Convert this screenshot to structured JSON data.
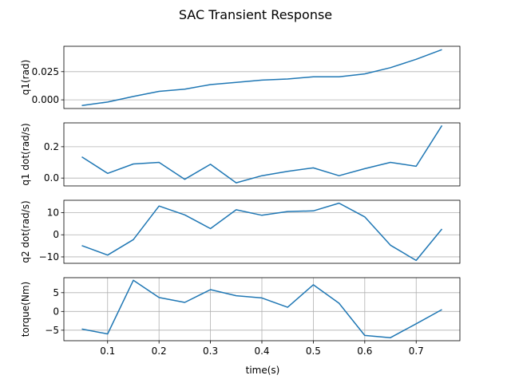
{
  "title": "SAC Transient Response",
  "xlabel": "time(s)",
  "x_ticks": [
    0.1,
    0.2,
    0.3,
    0.4,
    0.5,
    0.6,
    0.7
  ],
  "x_tick_labels": [
    "0.1",
    "0.2",
    "0.3",
    "0.4",
    "0.5",
    "0.6",
    "0.7"
  ],
  "line_color": "#1f77b4",
  "chart_data": [
    {
      "type": "line",
      "ylabel": "q1(rad)",
      "xlim": [
        0.015,
        0.785
      ],
      "ylim": [
        -0.0077,
        0.0475
      ],
      "grid": "y",
      "y_ticks": [
        0.0,
        0.025
      ],
      "y_tick_labels": [
        "0.000",
        "0.025"
      ],
      "x": [
        0.05,
        0.1,
        0.15,
        0.2,
        0.25,
        0.3,
        0.35,
        0.4,
        0.45,
        0.5,
        0.55,
        0.6,
        0.65,
        0.7,
        0.75
      ],
      "y": [
        -0.005,
        -0.002,
        0.003,
        0.0075,
        0.0095,
        0.0135,
        0.0155,
        0.0175,
        0.0185,
        0.0205,
        0.0205,
        0.023,
        0.0285,
        0.036,
        0.0445
      ]
    },
    {
      "type": "line",
      "ylabel": "q1 dot(rad/s)",
      "xlim": [
        0.015,
        0.785
      ],
      "ylim": [
        -0.05,
        0.352
      ],
      "grid": "y",
      "y_ticks": [
        0.0,
        0.2
      ],
      "y_tick_labels": [
        "0.0",
        "0.2"
      ],
      "x": [
        0.05,
        0.1,
        0.15,
        0.2,
        0.25,
        0.3,
        0.35,
        0.4,
        0.45,
        0.5,
        0.55,
        0.6,
        0.65,
        0.7,
        0.75
      ],
      "y": [
        0.135,
        0.03,
        0.09,
        0.1,
        -0.008,
        0.088,
        -0.03,
        0.015,
        0.043,
        0.065,
        0.015,
        0.06,
        0.1,
        0.075,
        0.335
      ]
    },
    {
      "type": "line",
      "ylabel": "q2 dot(rad/s)",
      "xlim": [
        0.015,
        0.785
      ],
      "ylim": [
        -12.9,
        15.6
      ],
      "grid": "y",
      "y_ticks": [
        -10,
        0,
        10
      ],
      "y_tick_labels": [
        "−10",
        "0",
        "10"
      ],
      "x": [
        0.05,
        0.1,
        0.15,
        0.2,
        0.25,
        0.3,
        0.35,
        0.4,
        0.45,
        0.5,
        0.55,
        0.6,
        0.65,
        0.7,
        0.75
      ],
      "y": [
        -4.9,
        -9.2,
        -2.2,
        13.0,
        9.0,
        2.8,
        11.3,
        8.8,
        10.5,
        10.8,
        14.3,
        8.1,
        -4.7,
        -11.6,
        2.6
      ]
    },
    {
      "type": "line",
      "ylabel": "torque(Nm)",
      "xlim": [
        0.015,
        0.785
      ],
      "ylim": [
        -7.8,
        9.0
      ],
      "grid": "both",
      "y_ticks": [
        -5,
        0,
        5
      ],
      "y_tick_labels": [
        "−5",
        "0",
        "5"
      ],
      "x": [
        0.05,
        0.1,
        0.15,
        0.2,
        0.25,
        0.3,
        0.35,
        0.4,
        0.45,
        0.5,
        0.55,
        0.6,
        0.65,
        0.7,
        0.75
      ],
      "y": [
        -4.7,
        -6.0,
        8.3,
        3.7,
        2.4,
        5.8,
        4.2,
        3.6,
        1.1,
        7.1,
        2.2,
        -6.4,
        -7.0,
        -3.3,
        0.5
      ]
    }
  ]
}
